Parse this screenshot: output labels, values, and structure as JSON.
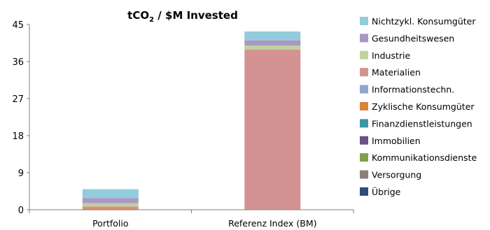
{
  "chart_data": {
    "type": "bar",
    "stacked": true,
    "title": "tCO",
    "title_subscript": "2",
    "title_suffix": " / $M Invested",
    "categories": [
      "Portfolio",
      "Referenz Index (BM)"
    ],
    "ylim": [
      0,
      45
    ],
    "yticks": [
      "0",
      "9",
      "18",
      "27",
      "36",
      "45"
    ],
    "ytick_values": [
      0,
      9,
      18,
      27,
      36,
      45
    ],
    "grid": false,
    "legend_position": "right",
    "series": [
      {
        "name": "Übrige",
        "color": "#2F4B7C",
        "values": [
          0,
          0
        ]
      },
      {
        "name": "Versorgung",
        "color": "#8C7F77",
        "values": [
          0,
          0
        ]
      },
      {
        "name": "Kommunikationsdienste",
        "color": "#7EA04A",
        "values": [
          0,
          0
        ]
      },
      {
        "name": "Immobilien",
        "color": "#6A5088",
        "values": [
          0,
          0
        ]
      },
      {
        "name": "Finanzdienstleistungen",
        "color": "#3A97A8",
        "values": [
          0,
          0
        ]
      },
      {
        "name": "Zyklische Konsumgüter",
        "color": "#D9853B",
        "values": [
          0.3,
          0.1
        ]
      },
      {
        "name": "Informationstechn.",
        "color": "#8EA6D0",
        "values": [
          0,
          0
        ]
      },
      {
        "name": "Materialien",
        "color": "#D49393",
        "values": [
          0.5,
          38.8
        ]
      },
      {
        "name": "Industrie",
        "color": "#BFD39A",
        "values": [
          0.8,
          1.0
        ]
      },
      {
        "name": "Gesundheitswesen",
        "color": "#AA97C3",
        "values": [
          1.2,
          1.2
        ]
      },
      {
        "name": "Nichtzykl. Konsumgüter",
        "color": "#93CDDD",
        "values": [
          2.2,
          2.2
        ]
      }
    ]
  }
}
